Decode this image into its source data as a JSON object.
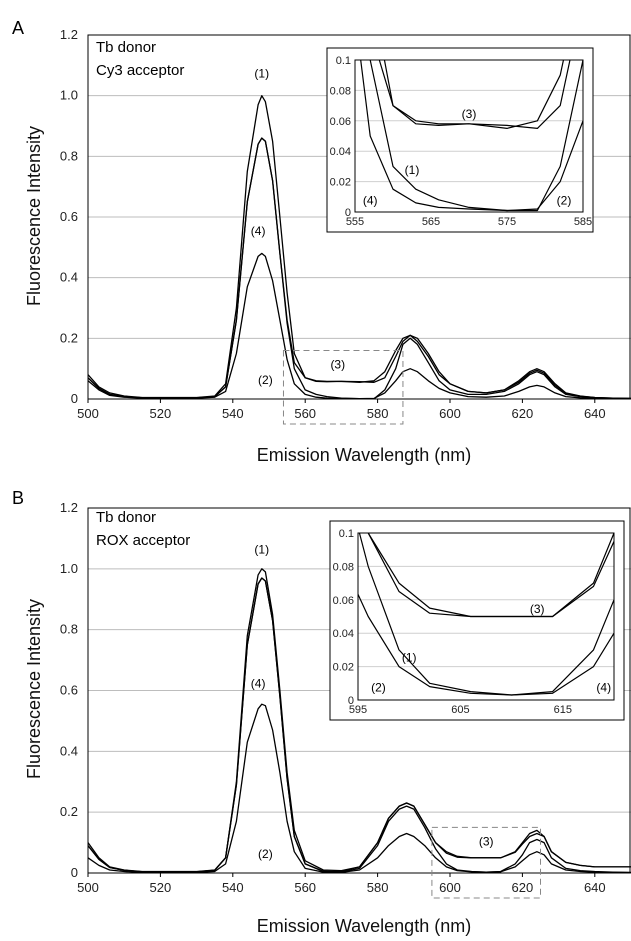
{
  "chart_data": [
    {
      "panel": "A",
      "type": "line",
      "text_lines": [
        "Tb donor",
        "Cy3 acceptor"
      ],
      "xlabel": "Emission Wavelength (nm)",
      "ylabel": "Fluorescence Intensity",
      "xlim": [
        500,
        650
      ],
      "ylim": [
        0,
        1.2
      ],
      "x_ticks": [
        "500",
        "520",
        "540",
        "560",
        "580",
        "600",
        "620",
        "640"
      ],
      "y_ticks": [
        "0",
        "0.2",
        "0.4",
        "0.6",
        "0.8",
        "1.0",
        "1.2"
      ],
      "grid": "horizontal",
      "series": [
        {
          "name": "(1)",
          "x": [
            500,
            503,
            506,
            510,
            515,
            520,
            525,
            530,
            535,
            538,
            541,
            544,
            547,
            548,
            549,
            551,
            553,
            555,
            557,
            560,
            563,
            566,
            570,
            575,
            579,
            582,
            585,
            587,
            589,
            591,
            594,
            597,
            600,
            605,
            610,
            615,
            619,
            622,
            624,
            626,
            629,
            632,
            636,
            640,
            645,
            650
          ],
          "y": [
            0.08,
            0.04,
            0.02,
            0.01,
            0.005,
            0.005,
            0.005,
            0.005,
            0.01,
            0.05,
            0.3,
            0.75,
            0.97,
            1.0,
            0.98,
            0.85,
            0.6,
            0.35,
            0.15,
            0.07,
            0.06,
            0.058,
            0.058,
            0.055,
            0.06,
            0.09,
            0.16,
            0.2,
            0.21,
            0.19,
            0.14,
            0.08,
            0.05,
            0.025,
            0.02,
            0.03,
            0.06,
            0.09,
            0.1,
            0.09,
            0.05,
            0.02,
            0.01,
            0.005,
            0.003,
            0.002
          ]
        },
        {
          "name": "(2)",
          "x": [
            500,
            503,
            506,
            510,
            515,
            520,
            525,
            530,
            535,
            538,
            541,
            544,
            547,
            548,
            549,
            551,
            553,
            555,
            557,
            560,
            563,
            566,
            570,
            575,
            579,
            582,
            585,
            587,
            589,
            591,
            594,
            597,
            600,
            605,
            610,
            615,
            619,
            622,
            624,
            626,
            629,
            632,
            636,
            640,
            645,
            650
          ],
          "y": [
            0.07,
            0.035,
            0.015,
            0.008,
            0.004,
            0.004,
            0.004,
            0.004,
            0.008,
            0.04,
            0.26,
            0.65,
            0.84,
            0.86,
            0.85,
            0.72,
            0.48,
            0.25,
            0.1,
            0.03,
            0.015,
            0.008,
            0.003,
            0.001,
            0.001,
            0.03,
            0.1,
            0.18,
            0.2,
            0.18,
            0.12,
            0.06,
            0.03,
            0.015,
            0.015,
            0.025,
            0.05,
            0.08,
            0.09,
            0.08,
            0.04,
            0.015,
            0.008,
            0.004,
            0.002,
            0.001
          ]
        },
        {
          "name": "(3)",
          "x": [
            500,
            503,
            506,
            510,
            515,
            520,
            525,
            530,
            535,
            538,
            541,
            544,
            547,
            548,
            549,
            551,
            553,
            555,
            557,
            560,
            563,
            566,
            570,
            575,
            579,
            582,
            585,
            587,
            589,
            591,
            594,
            597,
            600,
            605,
            610,
            615,
            619,
            622,
            624,
            626,
            629,
            632,
            636,
            640,
            645,
            650
          ],
          "y": [
            0.07,
            0.035,
            0.015,
            0.008,
            0.004,
            0.004,
            0.004,
            0.004,
            0.008,
            0.04,
            0.26,
            0.65,
            0.84,
            0.86,
            0.85,
            0.72,
            0.48,
            0.26,
            0.12,
            0.07,
            0.058,
            0.057,
            0.058,
            0.057,
            0.055,
            0.07,
            0.14,
            0.19,
            0.21,
            0.2,
            0.15,
            0.09,
            0.05,
            0.025,
            0.02,
            0.03,
            0.055,
            0.085,
            0.095,
            0.085,
            0.045,
            0.018,
            0.009,
            0.005,
            0.003,
            0.002
          ]
        },
        {
          "name": "(4)",
          "x": [
            500,
            503,
            506,
            510,
            515,
            520,
            525,
            530,
            535,
            538,
            541,
            544,
            547,
            548,
            549,
            551,
            553,
            555,
            557,
            560,
            563,
            566,
            570,
            575,
            579,
            582,
            585,
            587,
            589,
            591,
            594,
            597,
            600,
            605,
            610,
            615,
            619,
            622,
            624,
            626,
            629,
            632,
            636,
            640,
            645,
            650
          ],
          "y": [
            0.06,
            0.03,
            0.012,
            0.006,
            0.003,
            0.003,
            0.003,
            0.003,
            0.006,
            0.025,
            0.15,
            0.37,
            0.47,
            0.48,
            0.47,
            0.39,
            0.26,
            0.13,
            0.05,
            0.015,
            0.006,
            0.003,
            0.002,
            0.001,
            0.002,
            0.02,
            0.06,
            0.09,
            0.1,
            0.09,
            0.06,
            0.035,
            0.02,
            0.008,
            0.006,
            0.01,
            0.025,
            0.04,
            0.045,
            0.04,
            0.02,
            0.008,
            0.004,
            0.002,
            0.001,
            0.001
          ]
        }
      ],
      "labels": [
        {
          "text": "(1)",
          "x": 548,
          "y": 1.06
        },
        {
          "text": "(4)",
          "x": 547,
          "y": 0.54
        },
        {
          "text": "(2)",
          "x": 549,
          "y": 0.05
        },
        {
          "text": "(3)",
          "x": 569,
          "y": 0.1
        }
      ],
      "zoom_box": {
        "x": [
          554,
          587
        ],
        "y": [
          0,
          0.16
        ]
      },
      "inset": {
        "xlim": [
          555,
          585
        ],
        "ylim": [
          0,
          0.1
        ],
        "x_ticks": [
          "555",
          "565",
          "575",
          "585"
        ],
        "y_ticks": [
          "0",
          "0.02",
          "0.04",
          "0.06",
          "0.08",
          "0.1"
        ],
        "labels": [
          {
            "text": "(3)",
            "x": 570,
            "y": 0.062
          },
          {
            "text": "(1)",
            "x": 562.5,
            "y": 0.025
          },
          {
            "text": "(4)",
            "x": 557,
            "y": 0.005
          },
          {
            "text": "(2)",
            "x": 582.5,
            "y": 0.005
          }
        ]
      }
    },
    {
      "panel": "B",
      "type": "line",
      "text_lines": [
        "Tb donor",
        "ROX acceptor"
      ],
      "xlabel": "Emission Wavelength (nm)",
      "ylabel": "Fluorescence Intensity",
      "xlim": [
        500,
        650
      ],
      "ylim": [
        0,
        1.2
      ],
      "x_ticks": [
        "500",
        "520",
        "540",
        "560",
        "580",
        "600",
        "620",
        "640"
      ],
      "y_ticks": [
        "0",
        "0.2",
        "0.4",
        "0.6",
        "0.8",
        "1.0",
        "1.2"
      ],
      "grid": "horizontal",
      "series": [
        {
          "name": "(1)",
          "x": [
            500,
            503,
            506,
            510,
            515,
            520,
            525,
            530,
            535,
            538,
            541,
            544,
            547,
            548,
            549,
            551,
            553,
            555,
            557,
            560,
            565,
            570,
            575,
            580,
            583,
            586,
            588,
            590,
            593,
            596,
            599,
            602,
            606,
            610,
            614,
            618,
            620,
            622,
            624,
            626,
            628,
            632,
            636,
            640,
            645,
            650
          ],
          "y": [
            0.1,
            0.05,
            0.02,
            0.01,
            0.005,
            0.005,
            0.005,
            0.005,
            0.01,
            0.05,
            0.3,
            0.78,
            0.98,
            1.0,
            0.99,
            0.85,
            0.6,
            0.33,
            0.14,
            0.04,
            0.01,
            0.008,
            0.02,
            0.1,
            0.18,
            0.22,
            0.23,
            0.22,
            0.16,
            0.1,
            0.07,
            0.055,
            0.05,
            0.05,
            0.05,
            0.07,
            0.1,
            0.13,
            0.14,
            0.12,
            0.07,
            0.035,
            0.025,
            0.02,
            0.02,
            0.02
          ]
        },
        {
          "name": "(2)",
          "x": [
            500,
            503,
            506,
            510,
            515,
            520,
            525,
            530,
            535,
            538,
            541,
            544,
            547,
            548,
            549,
            551,
            553,
            555,
            557,
            560,
            565,
            570,
            575,
            580,
            583,
            586,
            588,
            590,
            593,
            596,
            599,
            602,
            606,
            610,
            614,
            618,
            620,
            622,
            624,
            626,
            628,
            632,
            636,
            640,
            645,
            650
          ],
          "y": [
            0.09,
            0.045,
            0.018,
            0.009,
            0.004,
            0.004,
            0.004,
            0.004,
            0.009,
            0.05,
            0.29,
            0.75,
            0.95,
            0.97,
            0.96,
            0.83,
            0.58,
            0.31,
            0.12,
            0.03,
            0.005,
            0.003,
            0.015,
            0.09,
            0.17,
            0.21,
            0.22,
            0.21,
            0.15,
            0.08,
            0.03,
            0.01,
            0.005,
            0.003,
            0.005,
            0.03,
            0.06,
            0.1,
            0.11,
            0.1,
            0.05,
            0.015,
            0.008,
            0.005,
            0.003,
            0.002
          ]
        },
        {
          "name": "(3)",
          "x": [
            500,
            503,
            506,
            510,
            515,
            520,
            525,
            530,
            535,
            538,
            541,
            544,
            547,
            548,
            549,
            551,
            553,
            555,
            557,
            560,
            565,
            570,
            575,
            580,
            583,
            586,
            588,
            590,
            593,
            596,
            599,
            602,
            606,
            610,
            614,
            618,
            620,
            622,
            624,
            626,
            628,
            632,
            636,
            640,
            645,
            650
          ],
          "y": [
            0.09,
            0.045,
            0.018,
            0.009,
            0.004,
            0.004,
            0.004,
            0.004,
            0.009,
            0.05,
            0.29,
            0.75,
            0.95,
            0.97,
            0.96,
            0.83,
            0.58,
            0.31,
            0.12,
            0.03,
            0.006,
            0.005,
            0.02,
            0.1,
            0.18,
            0.22,
            0.23,
            0.22,
            0.16,
            0.1,
            0.065,
            0.052,
            0.05,
            0.05,
            0.05,
            0.068,
            0.095,
            0.12,
            0.13,
            0.12,
            0.07,
            0.035,
            0.025,
            0.02,
            0.02,
            0.02
          ]
        },
        {
          "name": "(4)",
          "x": [
            500,
            503,
            506,
            510,
            515,
            520,
            525,
            530,
            535,
            538,
            541,
            544,
            547,
            548,
            549,
            551,
            553,
            555,
            557,
            560,
            565,
            570,
            575,
            580,
            583,
            586,
            588,
            590,
            593,
            596,
            599,
            602,
            606,
            610,
            614,
            618,
            620,
            622,
            624,
            626,
            628,
            632,
            636,
            640,
            645,
            650
          ],
          "y": [
            0.05,
            0.025,
            0.01,
            0.005,
            0.002,
            0.002,
            0.002,
            0.002,
            0.005,
            0.03,
            0.17,
            0.43,
            0.54,
            0.555,
            0.55,
            0.47,
            0.33,
            0.17,
            0.07,
            0.015,
            0.003,
            0.002,
            0.01,
            0.05,
            0.09,
            0.12,
            0.13,
            0.12,
            0.09,
            0.05,
            0.02,
            0.008,
            0.004,
            0.003,
            0.004,
            0.02,
            0.04,
            0.06,
            0.07,
            0.06,
            0.03,
            0.01,
            0.005,
            0.003,
            0.002,
            0.001
          ]
        }
      ],
      "labels": [
        {
          "text": "(1)",
          "x": 548,
          "y": 1.05
        },
        {
          "text": "(4)",
          "x": 547,
          "y": 0.61
        },
        {
          "text": "(2)",
          "x": 549,
          "y": 0.05
        },
        {
          "text": "(3)",
          "x": 610,
          "y": 0.09
        }
      ],
      "zoom_box": {
        "x": [
          595,
          625
        ],
        "y": [
          0,
          0.15
        ]
      },
      "inset": {
        "xlim": [
          595,
          620
        ],
        "ylim": [
          0,
          0.1
        ],
        "x_ticks": [
          "595",
          "605",
          "615"
        ],
        "y_ticks": [
          "0",
          "0.02",
          "0.04",
          "0.06",
          "0.08",
          "0.1"
        ],
        "labels": [
          {
            "text": "(3)",
            "x": 612.5,
            "y": 0.052
          },
          {
            "text": "(1)",
            "x": 600,
            "y": 0.023
          },
          {
            "text": "(2)",
            "x": 597,
            "y": 0.005
          },
          {
            "text": "(4)",
            "x": 619,
            "y": 0.005
          }
        ]
      }
    }
  ]
}
